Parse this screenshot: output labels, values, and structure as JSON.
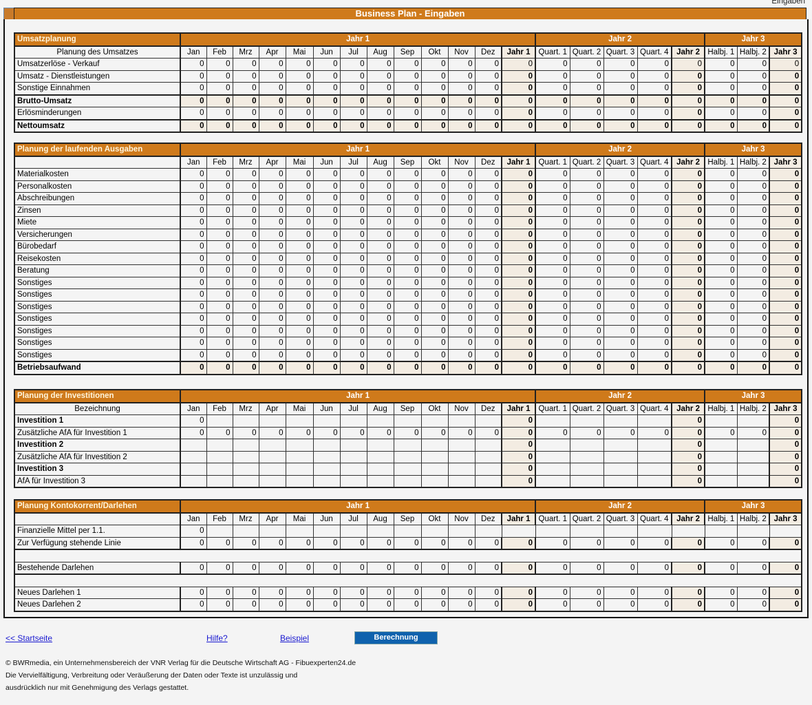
{
  "corner_label": "Eingaben",
  "title": "Business Plan - Eingaben",
  "period_groups": [
    "Jahr 1",
    "Jahr 2",
    "Jahr 3"
  ],
  "columns": [
    "Jan",
    "Feb",
    "Mrz",
    "Apr",
    "Mai",
    "Jun",
    "Jul",
    "Aug",
    "Sep",
    "Okt",
    "Nov",
    "Dez",
    "Jahr 1",
    "Quart. 1",
    "Quart. 2",
    "Quart. 3",
    "Quart. 4",
    "Jahr 2",
    "Halbj. 1",
    "Halbj. 2",
    "Jahr 3"
  ],
  "sections": [
    {
      "title": "Umsatzplanung",
      "subtitle": "Planung des Umsatzes",
      "rows": [
        {
          "label": "Umsatzerlöse - Verkauf",
          "values": [
            "0",
            "0",
            "0",
            "0",
            "0",
            "0",
            "0",
            "0",
            "0",
            "0",
            "0",
            "0",
            "0",
            "0",
            "0",
            "0",
            "0",
            "0",
            "0",
            "0",
            "0"
          ],
          "total_plain": true
        },
        {
          "label": "Umsatz - Dienstleistungen",
          "values": [
            "0",
            "0",
            "0",
            "0",
            "0",
            "0",
            "0",
            "0",
            "0",
            "0",
            "0",
            "0",
            "0",
            "0",
            "0",
            "0",
            "0",
            "0",
            "0",
            "0",
            "0"
          ]
        },
        {
          "label": "Sonstige Einnahmen",
          "values": [
            "0",
            "0",
            "0",
            "0",
            "0",
            "0",
            "0",
            "0",
            "0",
            "0",
            "0",
            "0",
            "0",
            "0",
            "0",
            "0",
            "0",
            "0",
            "0",
            "0",
            "0"
          ]
        },
        {
          "label": "Brutto-Umsatz",
          "sum": true,
          "values": [
            "0",
            "0",
            "0",
            "0",
            "0",
            "0",
            "0",
            "0",
            "0",
            "0",
            "0",
            "0",
            "0",
            "0",
            "0",
            "0",
            "0",
            "0",
            "0",
            "0",
            "0"
          ]
        },
        {
          "label": "Erlösminderungen",
          "values": [
            "0",
            "0",
            "0",
            "0",
            "0",
            "0",
            "0",
            "0",
            "0",
            "0",
            "0",
            "0",
            "0",
            "0",
            "0",
            "0",
            "0",
            "0",
            "0",
            "0",
            "0"
          ]
        },
        {
          "label": "Nettoumsatz",
          "sum": true,
          "values": [
            "0",
            "0",
            "0",
            "0",
            "0",
            "0",
            "0",
            "0",
            "0",
            "0",
            "0",
            "0",
            "0",
            "0",
            "0",
            "0",
            "0",
            "0",
            "0",
            "0",
            "0"
          ]
        }
      ]
    },
    {
      "title": "Planung der laufenden Ausgaben",
      "subtitle": "",
      "rows": [
        {
          "label": "Materialkosten",
          "values": [
            "0",
            "0",
            "0",
            "0",
            "0",
            "0",
            "0",
            "0",
            "0",
            "0",
            "0",
            "0",
            "0",
            "0",
            "0",
            "0",
            "0",
            "0",
            "0",
            "0",
            "0"
          ]
        },
        {
          "label": "Personalkosten",
          "values": [
            "0",
            "0",
            "0",
            "0",
            "0",
            "0",
            "0",
            "0",
            "0",
            "0",
            "0",
            "0",
            "0",
            "0",
            "0",
            "0",
            "0",
            "0",
            "0",
            "0",
            "0"
          ]
        },
        {
          "label": "Abschreibungen",
          "values": [
            "0",
            "0",
            "0",
            "0",
            "0",
            "0",
            "0",
            "0",
            "0",
            "0",
            "0",
            "0",
            "0",
            "0",
            "0",
            "0",
            "0",
            "0",
            "0",
            "0",
            "0"
          ]
        },
        {
          "label": "Zinsen",
          "values": [
            "0",
            "0",
            "0",
            "0",
            "0",
            "0",
            "0",
            "0",
            "0",
            "0",
            "0",
            "0",
            "0",
            "0",
            "0",
            "0",
            "0",
            "0",
            "0",
            "0",
            "0"
          ]
        },
        {
          "label": "Miete",
          "values": [
            "0",
            "0",
            "0",
            "0",
            "0",
            "0",
            "0",
            "0",
            "0",
            "0",
            "0",
            "0",
            "0",
            "0",
            "0",
            "0",
            "0",
            "0",
            "0",
            "0",
            "0"
          ]
        },
        {
          "label": "Versicherungen",
          "values": [
            "0",
            "0",
            "0",
            "0",
            "0",
            "0",
            "0",
            "0",
            "0",
            "0",
            "0",
            "0",
            "0",
            "0",
            "0",
            "0",
            "0",
            "0",
            "0",
            "0",
            "0"
          ]
        },
        {
          "label": "Bürobedarf",
          "values": [
            "0",
            "0",
            "0",
            "0",
            "0",
            "0",
            "0",
            "0",
            "0",
            "0",
            "0",
            "0",
            "0",
            "0",
            "0",
            "0",
            "0",
            "0",
            "0",
            "0",
            "0"
          ]
        },
        {
          "label": "Reisekosten",
          "values": [
            "0",
            "0",
            "0",
            "0",
            "0",
            "0",
            "0",
            "0",
            "0",
            "0",
            "0",
            "0",
            "0",
            "0",
            "0",
            "0",
            "0",
            "0",
            "0",
            "0",
            "0"
          ]
        },
        {
          "label": "Beratung",
          "values": [
            "0",
            "0",
            "0",
            "0",
            "0",
            "0",
            "0",
            "0",
            "0",
            "0",
            "0",
            "0",
            "0",
            "0",
            "0",
            "0",
            "0",
            "0",
            "0",
            "0",
            "0"
          ]
        },
        {
          "label": "Sonstiges",
          "values": [
            "0",
            "0",
            "0",
            "0",
            "0",
            "0",
            "0",
            "0",
            "0",
            "0",
            "0",
            "0",
            "0",
            "0",
            "0",
            "0",
            "0",
            "0",
            "0",
            "0",
            "0"
          ]
        },
        {
          "label": "Sonstiges",
          "values": [
            "0",
            "0",
            "0",
            "0",
            "0",
            "0",
            "0",
            "0",
            "0",
            "0",
            "0",
            "0",
            "0",
            "0",
            "0",
            "0",
            "0",
            "0",
            "0",
            "0",
            "0"
          ]
        },
        {
          "label": "Sonstiges",
          "values": [
            "0",
            "0",
            "0",
            "0",
            "0",
            "0",
            "0",
            "0",
            "0",
            "0",
            "0",
            "0",
            "0",
            "0",
            "0",
            "0",
            "0",
            "0",
            "0",
            "0",
            "0"
          ]
        },
        {
          "label": "Sonstiges",
          "values": [
            "0",
            "0",
            "0",
            "0",
            "0",
            "0",
            "0",
            "0",
            "0",
            "0",
            "0",
            "0",
            "0",
            "0",
            "0",
            "0",
            "0",
            "0",
            "0",
            "0",
            "0"
          ]
        },
        {
          "label": "Sonstiges",
          "values": [
            "0",
            "0",
            "0",
            "0",
            "0",
            "0",
            "0",
            "0",
            "0",
            "0",
            "0",
            "0",
            "0",
            "0",
            "0",
            "0",
            "0",
            "0",
            "0",
            "0",
            "0"
          ]
        },
        {
          "label": "Sonstiges",
          "values": [
            "0",
            "0",
            "0",
            "0",
            "0",
            "0",
            "0",
            "0",
            "0",
            "0",
            "0",
            "0",
            "0",
            "0",
            "0",
            "0",
            "0",
            "0",
            "0",
            "0",
            "0"
          ]
        },
        {
          "label": "Sonstiges",
          "values": [
            "0",
            "0",
            "0",
            "0",
            "0",
            "0",
            "0",
            "0",
            "0",
            "0",
            "0",
            "0",
            "0",
            "0",
            "0",
            "0",
            "0",
            "0",
            "0",
            "0",
            "0"
          ]
        },
        {
          "label": "Betriebsaufwand",
          "sum": true,
          "values": [
            "0",
            "0",
            "0",
            "0",
            "0",
            "0",
            "0",
            "0",
            "0",
            "0",
            "0",
            "0",
            "0",
            "0",
            "0",
            "0",
            "0",
            "0",
            "0",
            "0",
            "0"
          ]
        }
      ]
    },
    {
      "title": "Planung der Investitionen",
      "subtitle": "Bezeichnung",
      "rows": [
        {
          "label": "Investition 1",
          "bold_label": true,
          "values": [
            "0",
            "",
            "",
            "",
            "",
            "",
            "",
            "",
            "",
            "",
            "",
            "",
            "0",
            "",
            "",
            "",
            "",
            "0",
            "",
            "",
            "0"
          ]
        },
        {
          "label": "Zusätzliche AfA für Investition 1",
          "values": [
            "0",
            "0",
            "0",
            "0",
            "0",
            "0",
            "0",
            "0",
            "0",
            "0",
            "0",
            "0",
            "0",
            "0",
            "0",
            "0",
            "0",
            "0",
            "0",
            "0",
            "0"
          ]
        },
        {
          "label": "Investition 2",
          "bold_label": true,
          "values": [
            "",
            "",
            "",
            "",
            "",
            "",
            "",
            "",
            "",
            "",
            "",
            "",
            "0",
            "",
            "",
            "",
            "",
            "0",
            "",
            "",
            "0"
          ]
        },
        {
          "label": "Zusätzliche AfA für Investition 2",
          "values": [
            "",
            "",
            "",
            "",
            "",
            "",
            "",
            "",
            "",
            "",
            "",
            "",
            "0",
            "",
            "",
            "",
            "",
            "0",
            "",
            "",
            "0"
          ]
        },
        {
          "label": "Investition 3",
          "bold_label": true,
          "values": [
            "",
            "",
            "",
            "",
            "",
            "",
            "",
            "",
            "",
            "",
            "",
            "",
            "0",
            "",
            "",
            "",
            "",
            "0",
            "",
            "",
            "0"
          ]
        },
        {
          "label": "AfA für Investition 3",
          "values": [
            "",
            "",
            "",
            "",
            "",
            "",
            "",
            "",
            "",
            "",
            "",
            "",
            "0",
            "",
            "",
            "",
            "",
            "0",
            "",
            "",
            "0"
          ]
        }
      ]
    },
    {
      "title": "Planung Kontokorrent/Darlehen",
      "subtitle": "",
      "rows": [
        {
          "label": "Finanzielle Mittel per 1.1.",
          "values": [
            "0",
            "",
            "",
            "",
            "",
            "",
            "",
            "",
            "",
            "",
            "",
            "",
            "",
            "",
            "",
            "",
            "",
            "",
            "",
            "",
            ""
          ],
          "noshade": true
        },
        {
          "label": "Zur Verfügung stehende Linie",
          "values": [
            "0",
            "0",
            "0",
            "0",
            "0",
            "0",
            "0",
            "0",
            "0",
            "0",
            "0",
            "0",
            "0",
            "0",
            "0",
            "0",
            "0",
            "0",
            "0",
            "0",
            "0"
          ]
        },
        {
          "label": "",
          "blank": true
        },
        {
          "label": "Bestehende Darlehen",
          "values": [
            "0",
            "0",
            "0",
            "0",
            "0",
            "0",
            "0",
            "0",
            "0",
            "0",
            "0",
            "0",
            "0",
            "0",
            "0",
            "0",
            "0",
            "0",
            "0",
            "0",
            "0"
          ]
        },
        {
          "label": "",
          "blank": true
        },
        {
          "label": "Neues Darlehen 1",
          "values": [
            "0",
            "0",
            "0",
            "0",
            "0",
            "0",
            "0",
            "0",
            "0",
            "0",
            "0",
            "0",
            "0",
            "0",
            "0",
            "0",
            "0",
            "0",
            "0",
            "0",
            "0"
          ]
        },
        {
          "label": "Neues Darlehen 2",
          "values": [
            "0",
            "0",
            "0",
            "0",
            "0",
            "0",
            "0",
            "0",
            "0",
            "0",
            "0",
            "0",
            "0",
            "0",
            "0",
            "0",
            "0",
            "0",
            "0",
            "0",
            "0"
          ]
        }
      ]
    }
  ],
  "nav": {
    "home": "<< Startseite",
    "help": "Hilfe?",
    "example": "Beispiel",
    "calculate": "Berechnung"
  },
  "footer": [
    "© BWRmedia, ein Unternehmensbereich der VNR Verlag für die Deutsche Wirtschaft AG - Fibuexperten24.de",
    "Die Vervielfältigung, Verbreitung oder Veräußerung der Daten oder Texte ist unzulässig und",
    "ausdrücklich nur mit Genehmigung des Verlags gestattet."
  ],
  "colors": {
    "header": "#cf7a1b",
    "total_cell": "#f3ece2",
    "button": "#0f62ad",
    "link": "#1a1ad0"
  }
}
